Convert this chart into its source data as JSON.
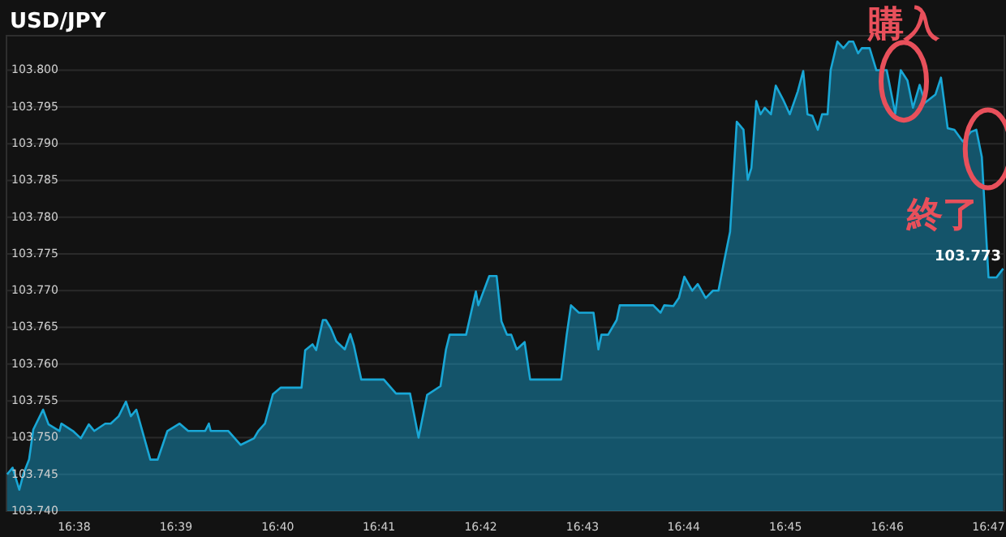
{
  "chart_data": {
    "type": "area",
    "title": "USD/JPY",
    "xlim": [
      16.6222,
      16.7859
    ],
    "ylim": [
      103.74,
      103.8047
    ],
    "xticks": [
      {
        "value": 16.6333,
        "label": "16:38"
      },
      {
        "value": 16.65,
        "label": "16:39"
      },
      {
        "value": 16.6667,
        "label": "16:40"
      },
      {
        "value": 16.6833,
        "label": "16:41"
      },
      {
        "value": 16.7,
        "label": "16:42"
      },
      {
        "value": 16.7167,
        "label": "16:43"
      },
      {
        "value": 16.7333,
        "label": "16:44"
      },
      {
        "value": 16.75,
        "label": "16:45"
      },
      {
        "value": 16.7667,
        "label": "16:46"
      },
      {
        "value": 16.7833,
        "label": "16:47"
      }
    ],
    "yticks": [
      {
        "value": 103.74,
        "label": "103.740"
      },
      {
        "value": 103.745,
        "label": "103.745"
      },
      {
        "value": 103.75,
        "label": "103.750"
      },
      {
        "value": 103.755,
        "label": "103.755"
      },
      {
        "value": 103.76,
        "label": "103.760"
      },
      {
        "value": 103.765,
        "label": "103.765"
      },
      {
        "value": 103.77,
        "label": "103.770"
      },
      {
        "value": 103.775,
        "label": "103.775"
      },
      {
        "value": 103.78,
        "label": "103.780"
      },
      {
        "value": 103.785,
        "label": "103.785"
      },
      {
        "value": 103.79,
        "label": "103.790"
      },
      {
        "value": 103.795,
        "label": "103.795"
      },
      {
        "value": 103.8,
        "label": "103.800"
      }
    ],
    "grid": "y",
    "series": [
      {
        "color": "#19a7d6",
        "x": [
          16.6223,
          16.6232,
          16.6243,
          16.625,
          16.6259,
          16.6266,
          16.6282,
          16.6291,
          16.6309,
          16.6312,
          16.6331,
          16.6344,
          16.6357,
          16.6366,
          16.6384,
          16.6393,
          16.6406,
          16.6418,
          16.6426,
          16.6435,
          16.6458,
          16.647,
          16.6486,
          16.6506,
          16.652,
          16.6548,
          16.6554,
          16.6557,
          16.6586,
          16.6606,
          16.6628,
          16.6635,
          16.6646,
          16.6659,
          16.6672,
          16.6706,
          16.6712,
          16.6724,
          16.673,
          16.6741,
          16.6746,
          16.6754,
          16.6763,
          16.6777,
          16.6786,
          16.6792,
          16.6804,
          16.6841,
          16.6861,
          16.6884,
          16.6898,
          16.6912,
          16.6934,
          16.6943,
          16.6949,
          16.6976,
          16.6992,
          16.6996,
          16.7014,
          16.7026,
          16.7034,
          16.7043,
          16.705,
          16.7059,
          16.7072,
          16.7081,
          16.7132,
          16.7141,
          16.7148,
          16.7161,
          16.7185,
          16.7193,
          16.7198,
          16.7209,
          16.7223,
          16.7228,
          16.7283,
          16.7295,
          16.7301,
          16.7316,
          16.7325,
          16.7334,
          16.7347,
          16.7356,
          16.7369,
          16.7381,
          16.739,
          16.74,
          16.7409,
          16.742,
          16.7431,
          16.7438,
          16.7444,
          16.7452,
          16.7459,
          16.7466,
          16.7476,
          16.7484,
          16.7496,
          16.7507,
          16.752,
          16.7529,
          16.7536,
          16.7544,
          16.7553,
          16.756,
          16.7569,
          16.7574,
          16.7585,
          16.7595,
          16.7604,
          16.7611,
          16.7619,
          16.7625,
          16.7638,
          16.7649,
          16.7666,
          16.768,
          16.7689,
          16.77,
          16.7709,
          16.772,
          16.7729,
          16.7746,
          16.7755,
          16.7766,
          16.7777,
          16.7791,
          16.7804,
          16.7813,
          16.7822,
          16.7833,
          16.7846,
          16.7857
        ],
        "values": [
          103.745,
          103.7459,
          103.7429,
          103.7451,
          103.747,
          103.7511,
          103.7538,
          103.7518,
          103.7509,
          103.7519,
          103.7509,
          103.7499,
          103.7518,
          103.7509,
          103.7519,
          103.7519,
          103.7529,
          103.7549,
          103.7529,
          103.7538,
          103.747,
          103.747,
          103.7509,
          103.7519,
          103.7509,
          103.7509,
          103.7519,
          103.7509,
          103.7509,
          103.749,
          103.7499,
          103.7509,
          103.7519,
          103.7559,
          103.7568,
          103.7568,
          103.7619,
          103.7627,
          103.7619,
          103.766,
          103.766,
          103.7649,
          103.7631,
          103.762,
          103.7641,
          103.7625,
          103.7579,
          103.7579,
          103.756,
          103.756,
          103.75,
          103.7558,
          103.757,
          103.762,
          103.764,
          103.764,
          103.7699,
          103.768,
          103.772,
          103.772,
          103.7658,
          103.764,
          103.764,
          103.762,
          103.763,
          103.7579,
          103.7579,
          103.764,
          103.768,
          103.767,
          103.767,
          103.762,
          103.764,
          103.764,
          103.766,
          103.768,
          103.768,
          103.767,
          103.768,
          103.7679,
          103.769,
          103.7719,
          103.77,
          103.7709,
          103.769,
          103.77,
          103.77,
          103.7743,
          103.778,
          103.793,
          103.7919,
          103.7851,
          103.7867,
          103.7958,
          103.794,
          103.7949,
          103.794,
          103.7979,
          103.796,
          103.794,
          103.7971,
          103.7999,
          103.794,
          103.7938,
          103.7919,
          103.794,
          103.794,
          103.8,
          103.8039,
          103.803,
          103.8039,
          103.8039,
          103.8023,
          103.803,
          103.803,
          103.8,
          103.8,
          103.7941,
          103.8,
          103.7986,
          103.7949,
          103.798,
          103.7956,
          103.7967,
          103.799,
          103.7921,
          103.7919,
          103.7903,
          103.7916,
          103.7919,
          103.7882,
          103.7718,
          103.7718,
          103.773
        ]
      }
    ],
    "annotations": [
      {
        "text": "購入",
        "x": 16.7694,
        "y": 103.7985
      },
      {
        "text": "終了",
        "x": 16.7832,
        "y": 103.7893
      },
      {
        "text": "103.773",
        "x": 16.7857,
        "y": 103.773
      }
    ]
  }
}
